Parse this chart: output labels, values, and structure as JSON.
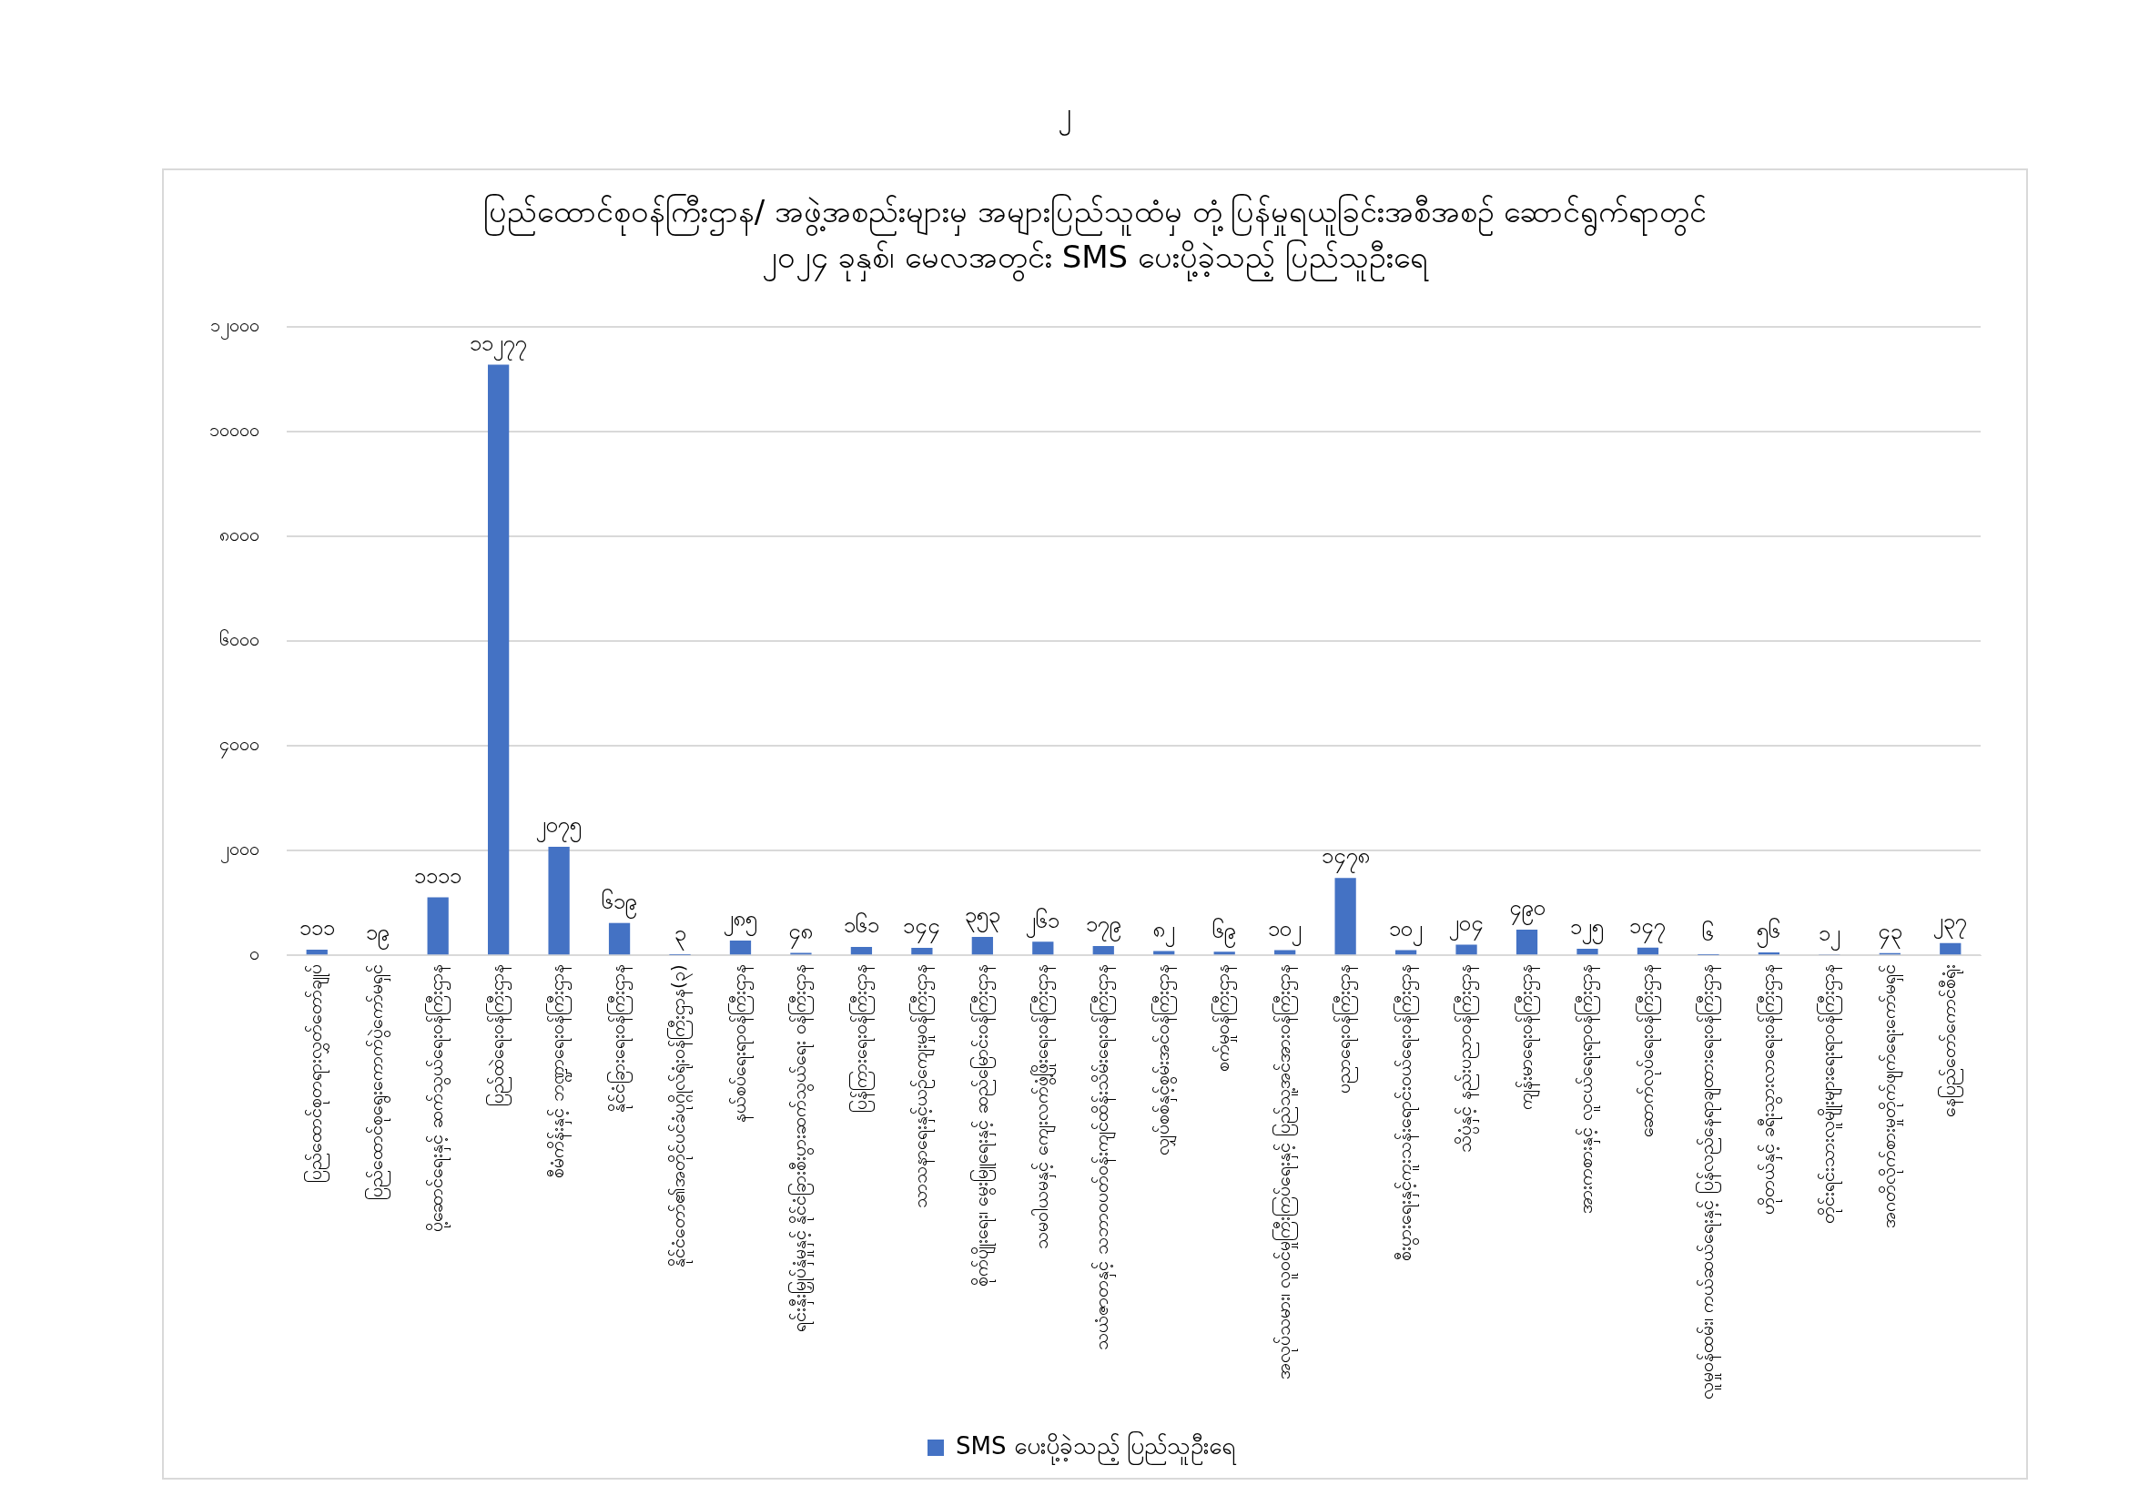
{
  "chart_data": {
    "type": "bar",
    "title": "ပြည်ထောင်စုဝန်ကြီးဌာန/ အဖွဲ့အစည်းများမှ အများပြည်သူထံမှ တုံ့ပြန်မှုရယူခြင်းအစီအစဉ် ဆောင်ရွက်ရာတွင်",
    "subtitle": "၂၀၂၄ ခုနှစ်၊ မေလအတွင်း SMS ပေးပို့ခဲ့သည့် ပြည်သူဦးရေ",
    "annotations": [
      "၂"
    ],
    "categories": [
      "ပြည်ထောင်စုတရားလွှတ်တော်ချုပ်",
      "ပြည်ထောင်စုရွေးကောက်ပွဲကော်မရှင်",
      "ပို့ဆောင်ရေးနှင့် ဆက်သွယ်ရေးဝန်ကြီးဌာန",
      "ပြည်ထဲရေးဝန်ကြီးဌာန",
      "စီမံကိန်းနှင့် ဘဏ္ဍာရေးဝန်ကြီးဌာန",
      "နိုင်ငံခြားရေးဝန်ကြီးဌာန",
      "နိုင်ငံတော်၏အတိုင်ပင်ခံပုဂ္ဂိုလ်ရုံးဝန်ကြီးဌာန(၃)",
      "နယ်စပ်ရေးရာဝန်ကြီးဌာန",
      "ရင်းနှီးမြှုပ်နှံမှုနှင့် နိုင်ငံခြားစီးပွားဆက်သွယ်ရေး ဝန်ကြီးဌာန",
      "ပြန်ကြားရေးဝန်ကြီးဌာန",
      "သာသနာရေးနှင့်ယဉ်ကျေးမှုဝန်ကြီးဌာန",
      "စိုက်ပျိုးရေး၊ မွေးမြူရေးနှင့် ဆည်မြောင်းဝန်ကြီးဌာန",
      "သမဝါယမနှင့် ကျေးလက်ဖွံ့ဖြိုးရေးဝန်ကြီးဌာန",
      "သယံဇာတနှင့် သဘာဝပတ်ဝန်းကျင်ထိန်းသိမ်းရေးဝန်ကြီးဌာန",
      "လျှပ်စစ်နှင့်စွမ်းအင်ဝန်ကြီးဌာန",
      "စက်မှုဝန်ကြီးဌာန",
      "အလုပ်သမား၊ လူဝင်မှုကြီးကြပ်ရေးနှင့် ပြည်သူ့အင်အားဝန်ကြီးဌာန",
      "ပညာရေးဝန်ကြီးဌာန",
      "စီးပွားရေးနှင့်ကူးသန်းရောင်းဝယ်ရေးဝန်ကြီးဌာန",
      "သိပ္ပံနှင့် နည်းပညာဝန်ကြီးဌာန",
      "ကျန်းမာရေးဝန်ကြီးဌာန",
      "အားကစားနှင့် လူငယ်ရေးရာဝန်ကြီးဌာန",
      "ဆောက်လုပ်ရေးဝန်ကြီးဌာန",
      "လူမှုဝန်ထမ်း၊ ကယ်ဆယ်ရေးနှင့် ပြန်လည်နေရာချထားရေးဝန်ကြီးဌာန",
      "ဟိုတယ်နှင့် ခရီးသွားလာရေးဝန်ကြီးဌာန",
      "တိုင်းရင်းသားလူမျိုးများရေးရာဝန်ကြီးဌာန",
      "အဂတိလိုက်စားမှုတိုက်ဖျက်ရေးကော်မရှင်",
      "နေပြည်တော်ကောင်စီရုံး"
    ],
    "series": [
      {
        "name": "SMS ပေးပို့ခဲ့သည့် ပြည်သူဦးရေ",
        "color": "#4472c4",
        "values": [
          111,
          19,
          1111,
          11277,
          2075,
          619,
          3,
          285,
          48,
          161,
          144,
          353,
          261,
          179,
          82,
          69,
          102,
          1478,
          102,
          204,
          490,
          125,
          147,
          6,
          56,
          12,
          43,
          237
        ],
        "value_labels": [
          "၁၁၁",
          "၁၉",
          "၁၁၁၁",
          "၁၁၂၇၇",
          "၂၀၇၅",
          "၆၁၉",
          "၃",
          "၂၈၅",
          "၄၈",
          "၁၆၁",
          "၁၄၄",
          "၃၅၃",
          "၂၆၁",
          "၁၇၉",
          "၈၂",
          "၆၉",
          "၁၀၂",
          "၁၄၇၈",
          "၁၀၂",
          "၂၀၄",
          "၄၉၀",
          "၁၂၅",
          "၁၄၇",
          "၆",
          "၅၆",
          "၁၂",
          "၄၃",
          "၂၃၇"
        ]
      }
    ],
    "ylim": [
      0,
      12000
    ],
    "yticks": [
      {
        "value": 0,
        "label": "၀"
      },
      {
        "value": 2000,
        "label": "၂၀၀၀"
      },
      {
        "value": 4000,
        "label": "၄၀၀၀"
      },
      {
        "value": 6000,
        "label": "၆၀၀၀"
      },
      {
        "value": 8000,
        "label": "၈၀၀၀"
      },
      {
        "value": 10000,
        "label": "၁၀၀၀၀"
      },
      {
        "value": 12000,
        "label": "၁၂၀၀၀"
      }
    ],
    "grid": "y",
    "legend": "bottom"
  }
}
